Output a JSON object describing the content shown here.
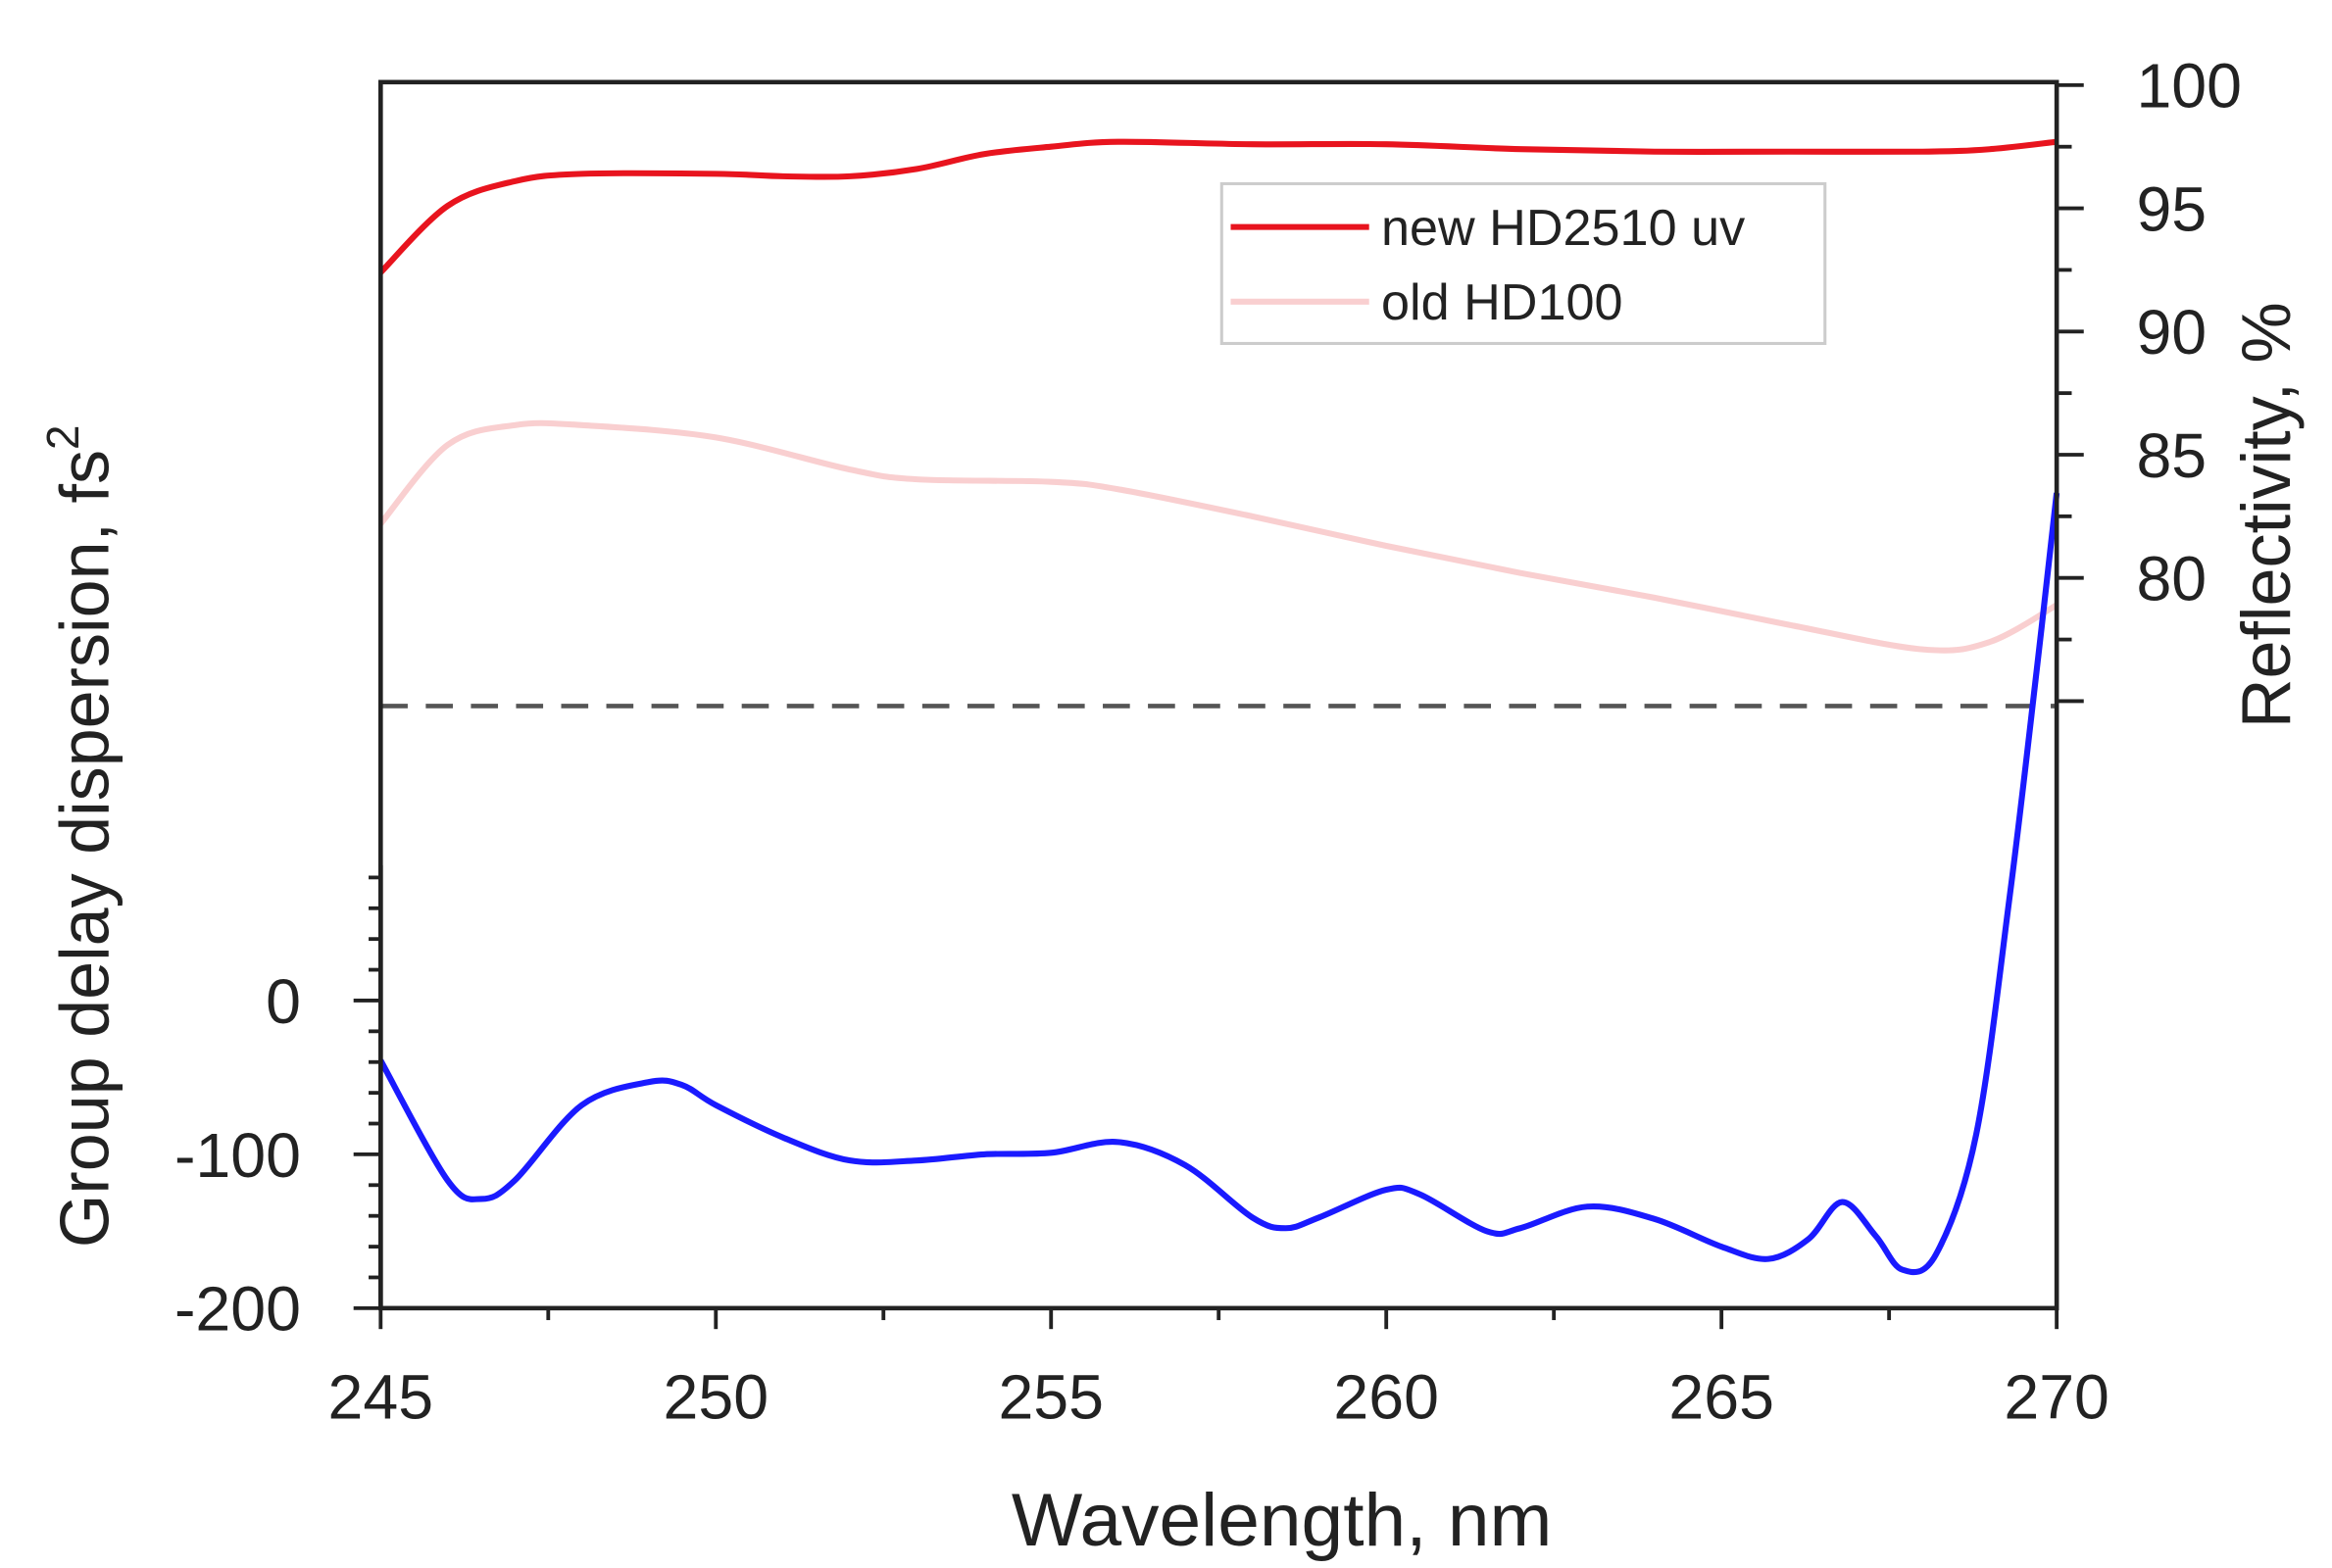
{
  "chart_data": {
    "type": "line",
    "title": "",
    "xlabel": "Wavelength, nm",
    "ylabel_left": "Group delay dispersion, fs",
    "ylabel_left_superscript": "2",
    "ylabel_right": "Reflectivity, %",
    "xlim": [
      245,
      270
    ],
    "ylim_left": [
      -200,
      390
    ],
    "ylim_right": [
      74.5,
      100
    ],
    "x_ticks": [
      "245",
      "250",
      "255",
      "260",
      "265",
      "270"
    ],
    "y_left_ticks": [
      "0",
      "-100",
      "-200"
    ],
    "y_right_ticks": [
      "100",
      "95",
      "90",
      "85",
      "80"
    ],
    "reference_line": {
      "axis": "right",
      "value": 74.8,
      "style": "dashed",
      "color": "#555555"
    },
    "legend": {
      "placement": "top-right",
      "entries": [
        "new HD2510 uv",
        "old HD100"
      ]
    },
    "series": [
      {
        "name": "new HD2510 uv",
        "axis": "right",
        "color": "#e8141e",
        "x": [
          245,
          246,
          247,
          248,
          250,
          251,
          252,
          253,
          254,
          255,
          256,
          258,
          260,
          262,
          264,
          266,
          268,
          269,
          270
        ],
        "y": [
          92.4,
          95.1,
          96.1,
          96.4,
          96.4,
          96.3,
          96.3,
          96.6,
          97.2,
          97.5,
          97.7,
          97.6,
          97.6,
          97.4,
          97.3,
          97.3,
          97.3,
          97.4,
          97.7
        ]
      },
      {
        "name": "old HD100",
        "axis": "right",
        "color": "#f9cfd0",
        "x": [
          245,
          246,
          247,
          248,
          250,
          252,
          253,
          255,
          256,
          258,
          260,
          262,
          264,
          266,
          268,
          269,
          270
        ],
        "y": [
          82.2,
          85.4,
          86.2,
          86.2,
          85.7,
          84.4,
          84.0,
          83.9,
          83.6,
          82.5,
          81.3,
          80.2,
          79.2,
          78.1,
          77.1,
          77.4,
          78.9
        ]
      },
      {
        "axis": "left",
        "color": "#1a1aff",
        "x": [
          245,
          246,
          246.5,
          247,
          248,
          249,
          249.5,
          250,
          251,
          252,
          253,
          254,
          255,
          256,
          257,
          258,
          258.5,
          259,
          260,
          260.5,
          261.5,
          262,
          263,
          264,
          265,
          265.7,
          266.3,
          266.8,
          267.3,
          267.7,
          268.2,
          268.8,
          269.3,
          269.7,
          270
        ],
        "y": [
          -39,
          -117,
          -129,
          -117,
          -68,
          -53,
          -55,
          -68,
          -89,
          -104,
          -104,
          -100,
          -99,
          -92,
          -107,
          -141,
          -148,
          -141,
          -123,
          -126,
          -150,
          -148,
          -134,
          -142,
          -160,
          -168,
          -155,
          -131,
          -153,
          -175,
          -165,
          -87,
          68,
          214,
          330
        ]
      }
    ]
  }
}
